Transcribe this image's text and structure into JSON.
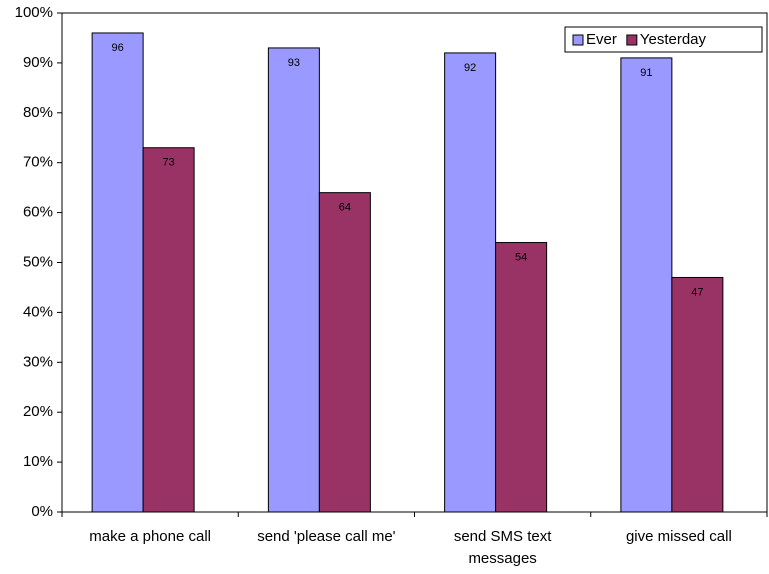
{
  "chart_data": {
    "type": "bar",
    "categories": [
      "make a phone call",
      "send 'please call me'",
      "send SMS text messages",
      "give missed call"
    ],
    "series": [
      {
        "name": "Ever",
        "color": "#9999ff",
        "values": [
          96,
          93,
          92,
          91
        ]
      },
      {
        "name": "Yesterday",
        "color": "#993366",
        "values": [
          73,
          64,
          54,
          47
        ]
      }
    ],
    "ylim": [
      0,
      100
    ],
    "yticks": [
      {
        "value": 0,
        "label": "0%"
      },
      {
        "value": 10,
        "label": "10%"
      },
      {
        "value": 20,
        "label": "20%"
      },
      {
        "value": 30,
        "label": "30%"
      },
      {
        "value": 40,
        "label": "40%"
      },
      {
        "value": 50,
        "label": "50%"
      },
      {
        "value": 60,
        "label": "60%"
      },
      {
        "value": 70,
        "label": "70%"
      },
      {
        "value": 80,
        "label": "80%"
      },
      {
        "value": 90,
        "label": "90%"
      },
      {
        "value": 100,
        "label": "100%"
      }
    ],
    "legend": "top-right"
  }
}
